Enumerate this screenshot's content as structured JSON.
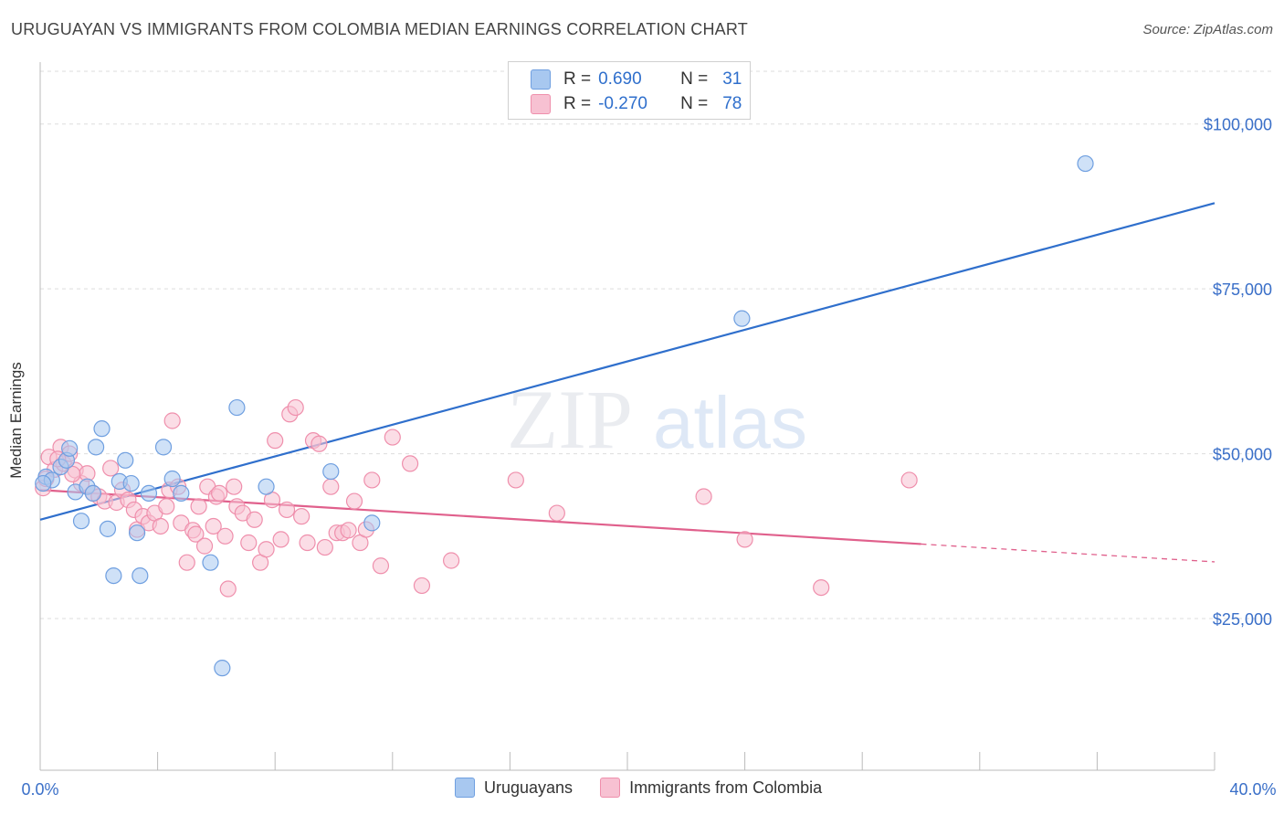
{
  "header": {
    "title": "URUGUAYAN VS IMMIGRANTS FROM COLOMBIA MEDIAN EARNINGS CORRELATION CHART",
    "source": "Source: ZipAtlas.com"
  },
  "watermark": {
    "part1": "ZIP",
    "part2": "atlas"
  },
  "legend": {
    "rows": [
      {
        "r_label": "R =",
        "r_value": "0.690",
        "n_label": "N =",
        "n_value": "31",
        "color": "#a8c8f0",
        "border": "#6f9fe0"
      },
      {
        "r_label": "R =",
        "r_value": "-0.270",
        "n_label": "N =",
        "n_value": "78",
        "color": "#f7c1d2",
        "border": "#ef8fac"
      }
    ]
  },
  "bottom_legend": [
    {
      "label": "Uruguayans",
      "color": "#a8c8f0",
      "border": "#6f9fe0"
    },
    {
      "label": "Immigrants from Colombia",
      "color": "#f7c1d2",
      "border": "#ef8fac"
    }
  ],
  "chart_data": {
    "type": "scatter",
    "title": "URUGUAYAN VS IMMIGRANTS FROM COLOMBIA MEDIAN EARNINGS CORRELATION CHART",
    "xlabel": "",
    "ylabel": "Median Earnings",
    "xlim": [
      0,
      40
    ],
    "ylim": [
      2000,
      108000
    ],
    "x_tick_labels": [
      "0.0%",
      "40.0%"
    ],
    "y_ticks": [
      25000,
      50000,
      75000,
      100000
    ],
    "y_tick_labels": [
      "$25,000",
      "$50,000",
      "$75,000",
      "$100,000"
    ],
    "grid": true,
    "legend_position": "top-center",
    "series": [
      {
        "name": "Uruguayans",
        "color": "#6f9fe0",
        "fill": "#a8c8f0",
        "trend": {
          "x": [
            0,
            40
          ],
          "y": [
            40000,
            88000
          ],
          "color": "#2f6fcc"
        },
        "points": [
          [
            0.2,
            46500
          ],
          [
            0.4,
            46000
          ],
          [
            0.7,
            48000
          ],
          [
            0.9,
            49000
          ],
          [
            1.0,
            50800
          ],
          [
            1.2,
            44200
          ],
          [
            1.4,
            39800
          ],
          [
            1.6,
            45000
          ],
          [
            1.8,
            44000
          ],
          [
            1.9,
            51000
          ],
          [
            2.1,
            53800
          ],
          [
            2.3,
            38600
          ],
          [
            2.5,
            31500
          ],
          [
            2.7,
            45800
          ],
          [
            2.9,
            49000
          ],
          [
            3.1,
            45500
          ],
          [
            3.3,
            38000
          ],
          [
            3.4,
            31500
          ],
          [
            3.7,
            44000
          ],
          [
            4.2,
            51000
          ],
          [
            4.5,
            46200
          ],
          [
            4.8,
            44000
          ],
          [
            5.8,
            33500
          ],
          [
            6.2,
            17500
          ],
          [
            6.7,
            57000
          ],
          [
            7.7,
            45000
          ],
          [
            9.9,
            47300
          ],
          [
            11.3,
            39500
          ],
          [
            23.9,
            70500
          ],
          [
            35.6,
            94000
          ],
          [
            0.1,
            45500
          ]
        ]
      },
      {
        "name": "Immigrants from Colombia",
        "color": "#ef8fac",
        "fill": "#f7c1d2",
        "trend": {
          "x": [
            0,
            30
          ],
          "y": [
            44500,
            36300
          ],
          "color": "#e0608c"
        },
        "trend_dash": {
          "x": [
            30,
            40
          ],
          "y": [
            36300,
            33600
          ]
        },
        "points": [
          [
            0.1,
            44800
          ],
          [
            0.3,
            49500
          ],
          [
            0.5,
            47600
          ],
          [
            0.7,
            51000
          ],
          [
            0.8,
            48500
          ],
          [
            1.0,
            50000
          ],
          [
            1.2,
            47500
          ],
          [
            1.4,
            45500
          ],
          [
            1.6,
            47000
          ],
          [
            1.8,
            44000
          ],
          [
            2.0,
            43500
          ],
          [
            2.2,
            42800
          ],
          [
            2.4,
            47800
          ],
          [
            2.6,
            42600
          ],
          [
            2.8,
            44500
          ],
          [
            3.0,
            43000
          ],
          [
            3.2,
            41500
          ],
          [
            3.3,
            38500
          ],
          [
            3.5,
            40500
          ],
          [
            3.7,
            39500
          ],
          [
            3.9,
            41000
          ],
          [
            4.1,
            39000
          ],
          [
            4.3,
            42000
          ],
          [
            4.4,
            44500
          ],
          [
            4.5,
            55000
          ],
          [
            4.7,
            45000
          ],
          [
            4.8,
            39500
          ],
          [
            5.0,
            33500
          ],
          [
            5.2,
            38400
          ],
          [
            5.3,
            37800
          ],
          [
            5.4,
            42000
          ],
          [
            5.6,
            36000
          ],
          [
            5.7,
            45000
          ],
          [
            5.9,
            39000
          ],
          [
            6.0,
            43500
          ],
          [
            6.1,
            44000
          ],
          [
            6.3,
            37500
          ],
          [
            6.4,
            29500
          ],
          [
            6.6,
            45000
          ],
          [
            6.7,
            42000
          ],
          [
            6.9,
            41000
          ],
          [
            7.1,
            36500
          ],
          [
            7.3,
            40000
          ],
          [
            7.5,
            33500
          ],
          [
            7.7,
            35500
          ],
          [
            7.9,
            43000
          ],
          [
            8.0,
            52000
          ],
          [
            8.2,
            37000
          ],
          [
            8.4,
            41500
          ],
          [
            8.5,
            56000
          ],
          [
            8.7,
            57000
          ],
          [
            8.9,
            40500
          ],
          [
            9.1,
            36500
          ],
          [
            9.3,
            52000
          ],
          [
            9.5,
            51500
          ],
          [
            9.7,
            35800
          ],
          [
            9.9,
            45000
          ],
          [
            10.1,
            38000
          ],
          [
            10.3,
            38000
          ],
          [
            10.5,
            38400
          ],
          [
            10.7,
            42800
          ],
          [
            10.9,
            36500
          ],
          [
            11.1,
            38500
          ],
          [
            11.3,
            46000
          ],
          [
            11.6,
            33000
          ],
          [
            12.0,
            52500
          ],
          [
            12.6,
            48500
          ],
          [
            13.0,
            30000
          ],
          [
            14.0,
            33800
          ],
          [
            16.2,
            46000
          ],
          [
            17.6,
            41000
          ],
          [
            22.6,
            43500
          ],
          [
            24.0,
            37000
          ],
          [
            26.6,
            29700
          ],
          [
            29.6,
            46000
          ],
          [
            0.2,
            46200
          ],
          [
            0.6,
            49200
          ],
          [
            1.1,
            46900
          ]
        ]
      }
    ]
  }
}
